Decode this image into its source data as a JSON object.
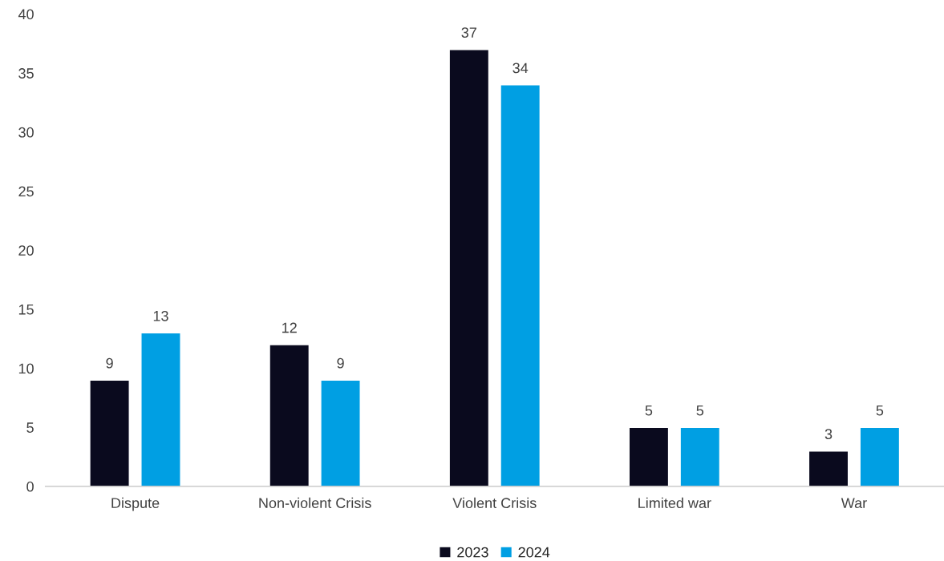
{
  "chart_data": {
    "type": "bar",
    "categories": [
      "Dispute",
      "Non-violent Crisis",
      "Violent Crisis",
      "Limited war",
      "War"
    ],
    "series": [
      {
        "name": "2023",
        "color": "#0a0a1e",
        "values": [
          9,
          12,
          37,
          5,
          3
        ]
      },
      {
        "name": "2024",
        "color": "#009fe3",
        "values": [
          13,
          9,
          34,
          5,
          5
        ]
      }
    ],
    "ylim": [
      0,
      40
    ],
    "yticks": [
      0,
      5,
      10,
      15,
      20,
      25,
      30,
      35,
      40
    ],
    "grid": false,
    "legend": "bottom",
    "data_labels": true
  }
}
